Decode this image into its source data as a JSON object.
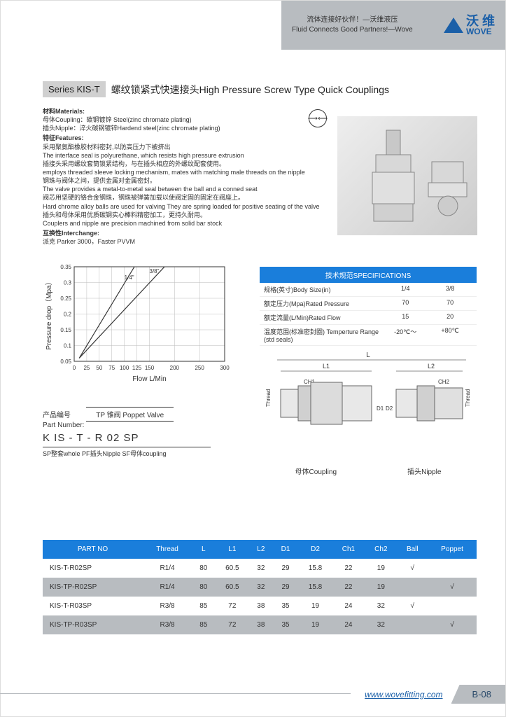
{
  "header": {
    "cn_slogan": "流体连接好伙伴！—沃维液压",
    "en_slogan": "Fluid Connects Good Partners!—Wove",
    "logo_cn": "沃 维",
    "logo_en": "WOVE"
  },
  "title": {
    "series_badge": "Series KIS-T",
    "text": "螺纹锁紧式快速接头High Pressure Screw Type Quick Couplings"
  },
  "info": {
    "materials_hdr": "材料Materials:",
    "materials_l1": "母体Coupling：碳钢镀锌 Steel(zinc chromate plating)",
    "materials_l2": "插头Nipple：淬火碳钢镀锌Hardend steel(zinc chromate plating)",
    "features_hdr": "特征Features:",
    "feat_l1": "采用聚氨酯橡胶材料密封,以防高压力下被挤出",
    "feat_l2": "The interface seal is polyurethane, which resists high pressure extrusion",
    "feat_l3": "插接头采用螺纹套筒锁紧结构，与在插头相应的外螺纹配套使用。",
    "feat_l4": "employs threaded sleeve locking mechanism, mates with matching male threads on the nipple",
    "feat_l5": "钢珠与阀体之间，提供金属对金属密封。",
    "feat_l6": "The valve provides a metal-to-metal seal between the ball and a conned seat",
    "feat_l7": "阀芯用坚硬的铬合金钢珠，钢珠被弹簧加载以使阀定固的固定在阀座上。",
    "feat_l8": "Hard chrome alloy balls are used for valving They are spring loaded for positive seating of the valve",
    "feat_l9": "插头和母体采用优质碳钢实心棒料精密加工，更持久耐用。",
    "feat_l10": "Couplers and nipple are precision machined from solid bar stock",
    "inter_hdr": "互换性Interchange:",
    "inter_l1": "派克 Parker 3000，Faster PVVM"
  },
  "chart": {
    "ylabel": "Pressure drop（Mpa）",
    "xlabel": "Flow L/Min",
    "ylim": [
      0.05,
      0.35
    ],
    "yticks": [
      0.05,
      0.1,
      0.15,
      0.2,
      0.25,
      0.3,
      0.35
    ],
    "xlim": [
      0,
      300
    ],
    "xticks": [
      0,
      25,
      50,
      75,
      100,
      125,
      150,
      200,
      250,
      300
    ],
    "series": [
      {
        "label": "1/4\"",
        "label_pos": [
          100,
          0.31
        ],
        "points": [
          [
            10,
            0.06
          ],
          [
            120,
            0.35
          ]
        ]
      },
      {
        "label": "3/8\"",
        "label_pos": [
          150,
          0.33
        ],
        "points": [
          [
            10,
            0.06
          ],
          [
            180,
            0.35
          ]
        ]
      }
    ],
    "line_color": "#333333",
    "grid_color": "#bbbbbb",
    "background_color": "#ffffff",
    "axis_fontsize": 8,
    "label_fontsize": 10
  },
  "spec": {
    "title": "技术规范SPECIFICATIONS",
    "rows": [
      {
        "label": "规格(英寸)Body Size(in)",
        "v1": "1/4",
        "v2": "3/8"
      },
      {
        "label": "额定压力(Mpa)Rated Pressure",
        "v1": "70",
        "v2": "70"
      },
      {
        "label": "额定流量(L/Min)Rated Flow",
        "v1": "15",
        "v2": "20"
      },
      {
        "label": "温度范围(标准密封圈) Temperture Range (std seals)",
        "v1": "-20℃～",
        "v2": "+80℃"
      }
    ]
  },
  "tech_drawing": {
    "dims": [
      "L",
      "L1",
      "L2",
      "CH1",
      "CH2",
      "D1",
      "D2",
      "Thread"
    ],
    "left_label": "母体Coupling",
    "right_label": "插头Nipple"
  },
  "partnum": {
    "label_cn": "产品编号",
    "label_en": "Part Number:",
    "box_text": "TP 锥阀 Poppet Valve",
    "code": "K IS - T - R 02 SP",
    "legend": "SP整套whole  PF插头Nipple  SF母体coupling"
  },
  "table": {
    "columns": [
      "PART NO",
      "Thread",
      "L",
      "L1",
      "L2",
      "D1",
      "D2",
      "Ch1",
      "Ch2",
      "Ball",
      "Poppet"
    ],
    "rows": [
      [
        "KIS-T-R02SP",
        "R1/4",
        "80",
        "60.5",
        "32",
        "29",
        "15.8",
        "22",
        "19",
        "√",
        ""
      ],
      [
        "KIS-TP-R02SP",
        "R1/4",
        "80",
        "60.5",
        "32",
        "29",
        "15.8",
        "22",
        "19",
        "",
        "√"
      ],
      [
        "KIS-T-R03SP",
        "R3/8",
        "85",
        "72",
        "38",
        "35",
        "19",
        "24",
        "32",
        "√",
        ""
      ],
      [
        "KIS-TP-R03SP",
        "R3/8",
        "85",
        "72",
        "38",
        "35",
        "19",
        "24",
        "32",
        "",
        "√"
      ]
    ],
    "header_bg": "#1a7edb",
    "odd_bg": "#b8bcc0",
    "even_bg": "#ffffff"
  },
  "footer": {
    "url": "www.wovefitting.com",
    "page": "B-08"
  }
}
